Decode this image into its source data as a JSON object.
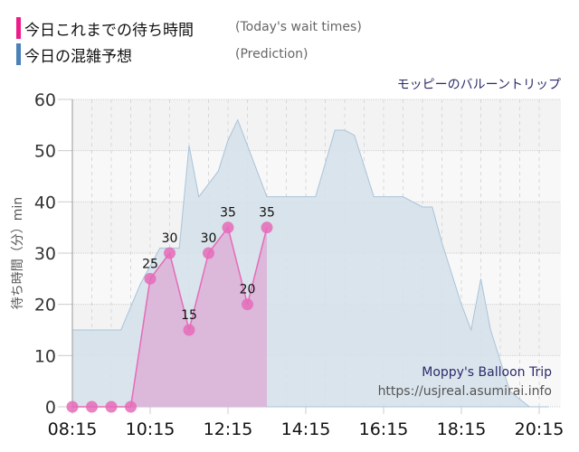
{
  "legend": [
    {
      "label_jp": "今日これまでの待ち時間",
      "label_en": "(Today's wait times)",
      "color": "#ee1b8b"
    },
    {
      "label_jp": "今日の混雑予想",
      "label_en": "(Prediction)",
      "color": "#4a82b8"
    }
  ],
  "attraction_title": "モッピーのバルーントリップ",
  "watermark": {
    "name": "Moppy's Balloon Trip",
    "url": "https://usjreal.asumirai.info"
  },
  "colors": {
    "actual": "#e56bb8",
    "actual_fill": "#dcb3d9",
    "prediction_line": "#a9c3da",
    "prediction_fill": "#d6e1ea"
  },
  "chart_data": {
    "type": "area",
    "title": "モッピーのバルーントリップ",
    "xlabel": "",
    "ylabel": "待ち時間（分）min",
    "ylim": [
      0,
      60
    ],
    "yticks": [
      0,
      10,
      20,
      30,
      40,
      50,
      60
    ],
    "xticks": [
      "08:15",
      "10:15",
      "12:15",
      "14:15",
      "16:15",
      "18:15",
      "20:15"
    ],
    "grid": true,
    "legend_position": "top-left",
    "series": [
      {
        "name": "今日これまでの待ち時間 (Today's wait times)",
        "type": "line-area",
        "x": [
          "08:15",
          "08:45",
          "09:15",
          "09:45",
          "10:15",
          "10:45",
          "11:15",
          "11:45",
          "12:15",
          "12:45",
          "13:15"
        ],
        "values": [
          0,
          0,
          0,
          0,
          25,
          30,
          15,
          30,
          35,
          20,
          35
        ],
        "labels": [
          "",
          "",
          "",
          "",
          "25",
          "30",
          "15",
          "30",
          "35",
          "20",
          "35"
        ]
      },
      {
        "name": "今日の混雑予想 (Prediction)",
        "type": "area",
        "x": [
          "08:15",
          "09:00",
          "09:30",
          "10:00",
          "10:30",
          "11:00",
          "11:15",
          "11:30",
          "12:00",
          "12:15",
          "12:30",
          "13:15",
          "13:30",
          "14:00",
          "14:30",
          "15:00",
          "15:15",
          "15:30",
          "16:00",
          "16:30",
          "16:45",
          "17:15",
          "17:30",
          "17:45",
          "18:15",
          "18:30",
          "18:45",
          "19:00",
          "19:30",
          "20:00",
          "20:15",
          "20:30"
        ],
        "values": [
          15,
          15,
          15,
          24,
          31,
          31,
          51,
          41,
          46,
          52,
          56,
          41,
          41,
          41,
          41,
          54,
          54,
          53,
          41,
          41,
          41,
          39,
          39,
          32,
          20,
          15,
          25,
          15,
          3,
          0,
          0,
          0
        ]
      }
    ]
  }
}
